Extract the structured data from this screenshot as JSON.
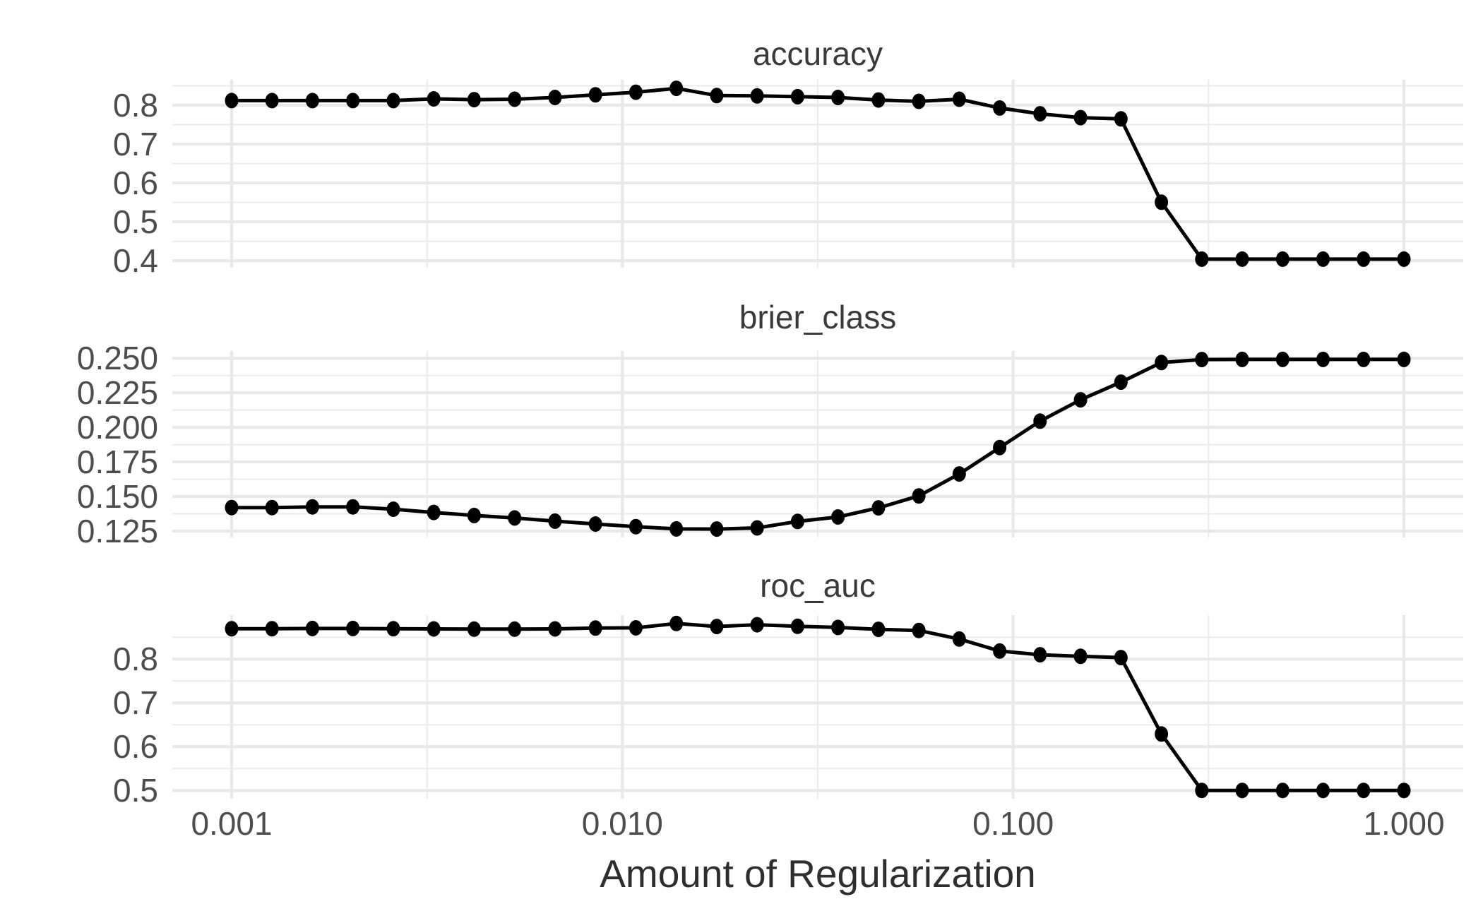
{
  "figure": {
    "background": "#FFFFFF",
    "grid_color_major": "#E8E8E8",
    "grid_color_minor": "#ECECEC",
    "line_color": "#000000",
    "point_color": "#000000",
    "axis_text_color": "#4D4D4D",
    "strip_text_color": "#3A3A3A",
    "axis_title_color": "#2E2E2E"
  },
  "chart_data": {
    "type": "line",
    "x_label": "Amount of Regularization",
    "x_scale": "log10",
    "x_log_range": [
      -3,
      0
    ],
    "grid": "on",
    "legend": "none",
    "x_values": [
      0.001,
      0.001269,
      0.00161,
      0.002043,
      0.002593,
      0.00329,
      0.004175,
      0.005298,
      0.006723,
      0.008531,
      0.010826,
      0.013738,
      0.017433,
      0.022122,
      0.028072,
      0.035622,
      0.045204,
      0.057362,
      0.07279,
      0.092367,
      0.11721,
      0.148735,
      0.188739,
      0.239503,
      0.30392,
      0.385662,
      0.48939,
      0.621017,
      0.788046,
      1.0
    ],
    "x_major_ticks": {
      "values": [
        0.001,
        0.01,
        0.1,
        1.0
      ],
      "labels": [
        "0.001",
        "0.010",
        "0.100",
        "1.000"
      ]
    },
    "x_minor_ticks": [
      0.0031623,
      0.031623,
      0.31623
    ],
    "panels": [
      {
        "title": "accuracy",
        "ylim": [
          0.382,
          0.8655
        ],
        "y_major": {
          "values": [
            0.8,
            0.7,
            0.6,
            0.5,
            0.4
          ],
          "labels": [
            "0.8",
            "0.7",
            "0.6",
            "0.5",
            "0.4"
          ]
        },
        "y_minor": [
          0.85,
          0.75,
          0.65,
          0.55,
          0.45
        ],
        "values": [
          0.812,
          0.812,
          0.812,
          0.812,
          0.812,
          0.8165,
          0.8145,
          0.8155,
          0.82,
          0.827,
          0.8335,
          0.8435,
          0.825,
          0.824,
          0.822,
          0.82,
          0.8135,
          0.81,
          0.8155,
          0.793,
          0.778,
          0.768,
          0.765,
          0.5505,
          0.404,
          0.404,
          0.404,
          0.404,
          0.404,
          0.404
        ]
      },
      {
        "title": "brier_class",
        "ylim": [
          0.1204,
          0.2552
        ],
        "y_major": {
          "values": [
            0.25,
            0.225,
            0.2,
            0.175,
            0.15,
            0.125
          ],
          "labels": [
            "0.250",
            "0.225",
            "0.200",
            "0.175",
            "0.150",
            "0.125"
          ]
        },
        "y_minor": [
          0.2375,
          0.2125,
          0.1875,
          0.1625,
          0.1375
        ],
        "values": [
          0.142,
          0.142,
          0.1425,
          0.1425,
          0.1408,
          0.1385,
          0.1363,
          0.1345,
          0.1322,
          0.1301,
          0.1282,
          0.1266,
          0.1265,
          0.1273,
          0.132,
          0.1352,
          0.1418,
          0.1504,
          0.1663,
          0.1854,
          0.2045,
          0.2199,
          0.2327,
          0.2469,
          0.249,
          0.2491,
          0.2491,
          0.2491,
          0.2491,
          0.2491
        ]
      },
      {
        "title": "roc_auc",
        "ylim": [
          0.481,
          0.9005
        ],
        "y_major": {
          "values": [
            0.8,
            0.7,
            0.6,
            0.5
          ],
          "labels": [
            "0.8",
            "0.7",
            "0.6",
            "0.5"
          ]
        },
        "y_minor": [
          0.85,
          0.75,
          0.65,
          0.55
        ],
        "values": [
          0.8695,
          0.8695,
          0.87,
          0.87,
          0.8695,
          0.869,
          0.8685,
          0.8685,
          0.869,
          0.871,
          0.8715,
          0.8815,
          0.8745,
          0.8785,
          0.875,
          0.8725,
          0.868,
          0.8655,
          0.846,
          0.8185,
          0.81,
          0.8065,
          0.8035,
          0.629,
          0.5,
          0.5,
          0.5,
          0.5,
          0.5,
          0.5
        ]
      }
    ]
  }
}
